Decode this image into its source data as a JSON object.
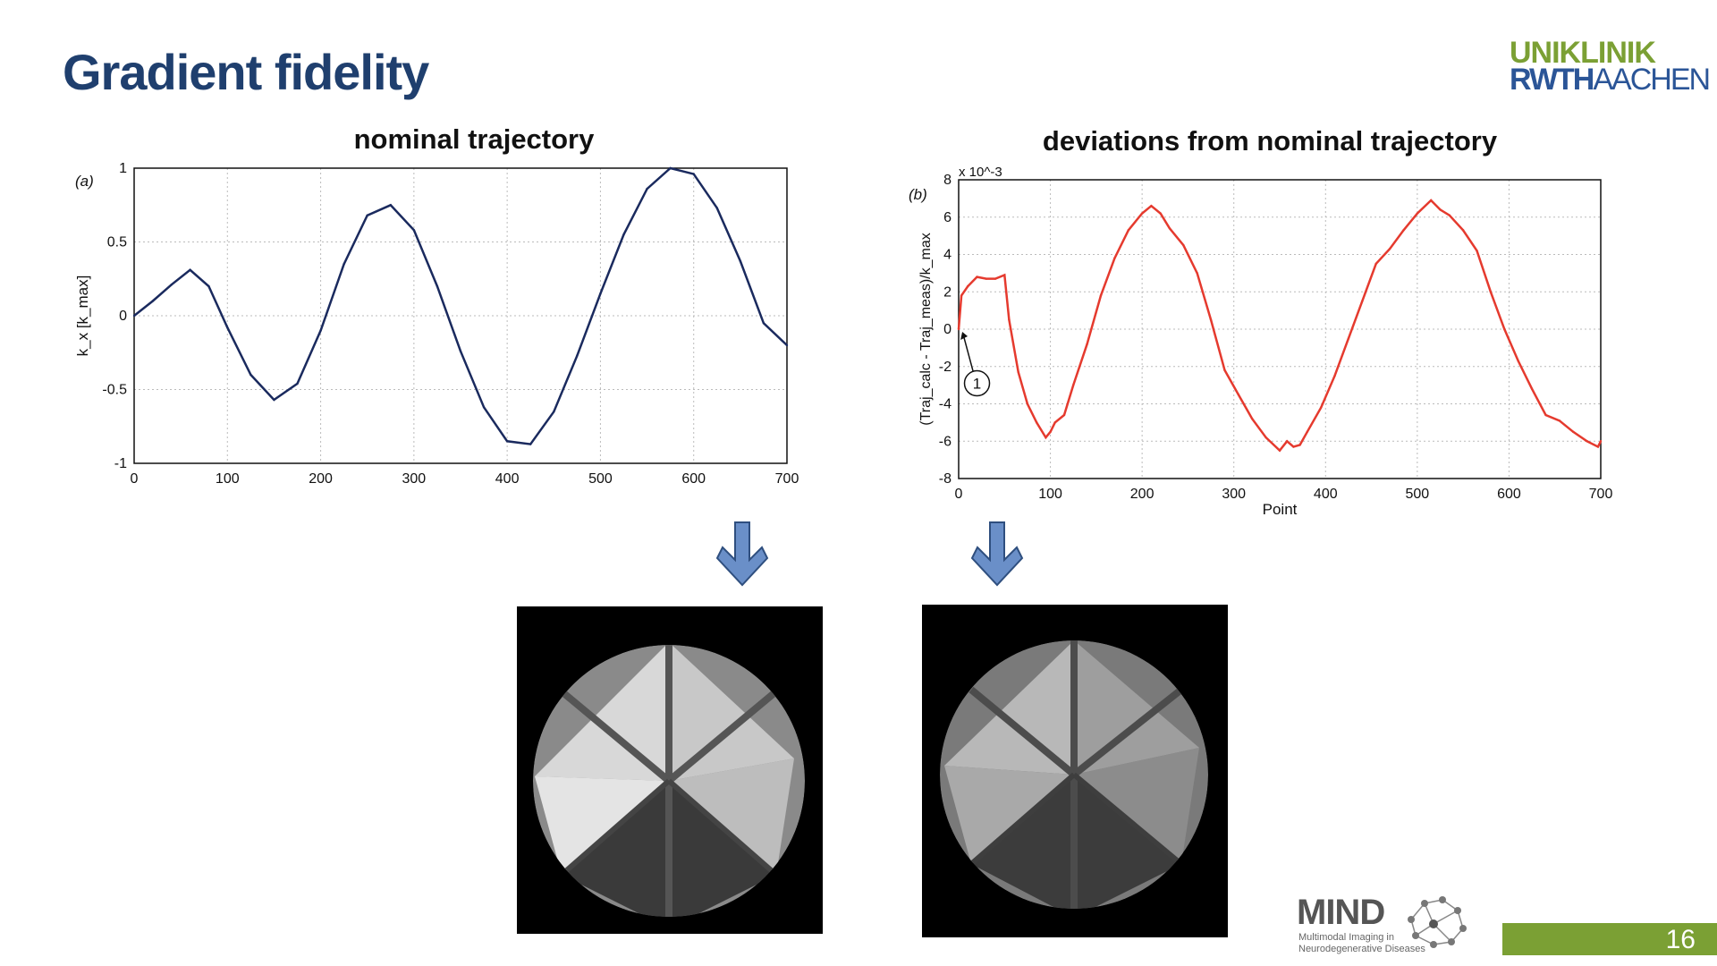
{
  "slide": {
    "title": "Gradient fidelity",
    "page_number": "16"
  },
  "logos": {
    "rwth_line1": "UNIKLINIK",
    "rwth_line2_bold": "RWTH",
    "rwth_line2_light": "AACHEN",
    "mind_word": "MIND",
    "mind_sub1": "Multimodal Imaging in",
    "mind_sub2": "Neurodegenerative Diseases"
  },
  "colors": {
    "title": "#1f3f6e",
    "nominal_line": "#1a2a5e",
    "deviation_line": "#e53a2e",
    "arrow_fill": "#6a8fc8",
    "footer_green": "#7ba034"
  },
  "icons": [
    "down-arrow-icon",
    "down-arrow-icon",
    "mind-network-icon"
  ],
  "chart_data": [
    {
      "type": "line",
      "panel_label": "(a)",
      "title": "nominal trajectory",
      "xlabel": "",
      "ylabel": "k_x [k_max]",
      "xlim": [
        0,
        700
      ],
      "ylim": [
        -1,
        1
      ],
      "xticks": [
        "0",
        "100",
        "200",
        "300",
        "400",
        "500",
        "600",
        "700"
      ],
      "yticks": [
        "1",
        "0.5",
        "0",
        "-0.5",
        "-1"
      ],
      "grid": true,
      "series": [
        {
          "x": [
            0,
            20,
            40,
            60,
            80,
            100,
            125,
            150,
            175,
            200,
            225,
            250,
            275,
            300,
            325,
            350,
            375,
            400,
            425,
            450,
            475,
            500,
            525,
            550,
            575,
            600,
            625,
            650,
            675,
            700
          ],
          "values": [
            0,
            0.1,
            0.21,
            0.31,
            0.2,
            -0.08,
            -0.4,
            -0.57,
            -0.46,
            -0.1,
            0.35,
            0.68,
            0.75,
            0.58,
            0.2,
            -0.24,
            -0.62,
            -0.85,
            -0.87,
            -0.65,
            -0.27,
            0.15,
            0.55,
            0.86,
            1.0,
            0.96,
            0.73,
            0.37,
            -0.05,
            -0.2
          ]
        }
      ]
    },
    {
      "type": "line",
      "panel_label": "(b)",
      "title": "deviations from nominal trajectory",
      "xlabel": "Point",
      "ylabel": "(Traj_calc - Traj_meas)/k_max",
      "scale_label": "x 10^-3",
      "xlim": [
        0,
        700
      ],
      "ylim": [
        -8,
        8
      ],
      "xticks": [
        "0",
        "100",
        "200",
        "300",
        "400",
        "500",
        "600",
        "700"
      ],
      "yticks": [
        "8",
        "6",
        "4",
        "2",
        "0",
        "-2",
        "-4",
        "-6",
        "-8"
      ],
      "grid": true,
      "annotation": "1",
      "series": [
        {
          "x": [
            0,
            3,
            10,
            20,
            30,
            40,
            50,
            55,
            65,
            75,
            85,
            95,
            100,
            105,
            115,
            125,
            140,
            155,
            170,
            185,
            200,
            210,
            220,
            230,
            245,
            260,
            275,
            290,
            305,
            320,
            335,
            350,
            358,
            365,
            372,
            380,
            395,
            410,
            425,
            440,
            455,
            470,
            485,
            500,
            515,
            525,
            535,
            550,
            565,
            580,
            595,
            610,
            625,
            640,
            655,
            670,
            685,
            697,
            700
          ],
          "values": [
            0,
            1.8,
            2.3,
            2.8,
            2.7,
            2.7,
            2.9,
            0.5,
            -2.3,
            -4.0,
            -5.0,
            -5.8,
            -5.5,
            -5.0,
            -4.6,
            -3.0,
            -0.8,
            1.8,
            3.8,
            5.3,
            6.2,
            6.6,
            6.2,
            5.4,
            4.5,
            3.0,
            0.5,
            -2.2,
            -3.5,
            -4.8,
            -5.8,
            -6.5,
            -6.0,
            -6.3,
            -6.2,
            -5.5,
            -4.2,
            -2.5,
            -0.5,
            1.5,
            3.5,
            4.3,
            5.3,
            6.2,
            6.9,
            6.4,
            6.1,
            5.3,
            4.2,
            2.0,
            0,
            -1.7,
            -3.2,
            -4.6,
            -4.9,
            -5.5,
            -6.0,
            -6.3,
            -6.0
          ]
        }
      ]
    }
  ]
}
